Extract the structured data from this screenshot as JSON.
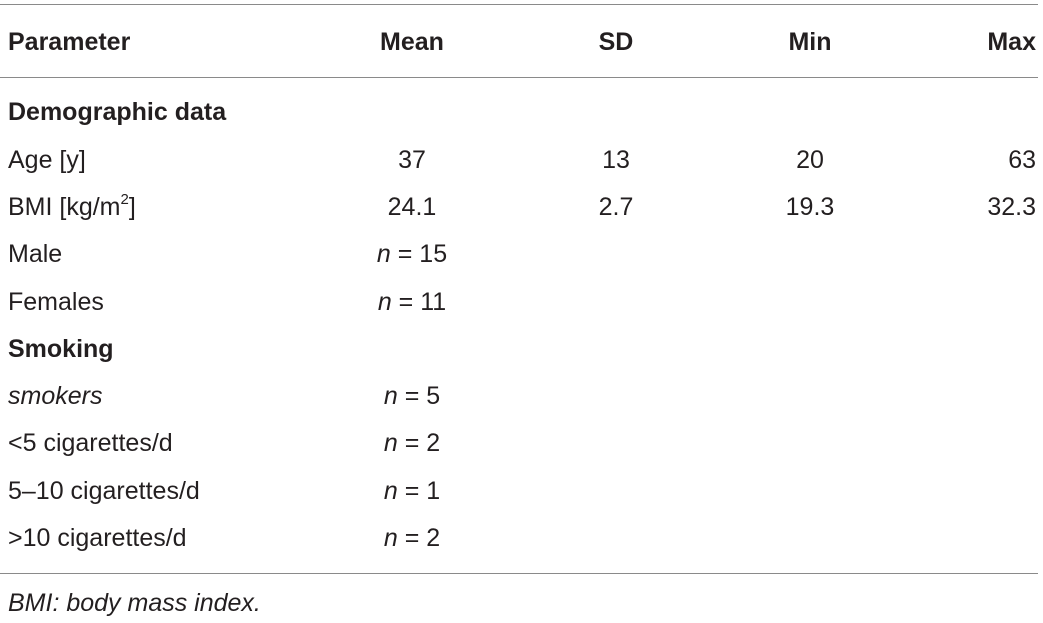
{
  "table": {
    "headers": {
      "parameter": "Parameter",
      "mean": "Mean",
      "sd": "SD",
      "min": "Min",
      "max": "Max"
    },
    "sections": {
      "demographic": "Demographic data",
      "smoking": "Smoking"
    },
    "rows": {
      "age": {
        "parameter": "Age [y]",
        "mean": "37",
        "sd": "13",
        "min": "20",
        "max": "63"
      },
      "bmi": {
        "parameter_prefix": "BMI [kg/m",
        "parameter_sup": "2",
        "parameter_suffix": "]",
        "mean": "24.1",
        "sd": "2.7",
        "min": "19.3",
        "max": "32.3"
      },
      "male": {
        "parameter": "Male",
        "n_symbol": "n",
        "n_rest": " = 15"
      },
      "females": {
        "parameter": "Females",
        "n_symbol": "n",
        "n_rest": " = 11"
      },
      "smokers": {
        "parameter": "smokers",
        "n_symbol": "n",
        "n_rest": " = 5"
      },
      "lt5": {
        "parameter": "<5 cigarettes/d",
        "n_symbol": "n",
        "n_rest": " = 2"
      },
      "five_to_ten": {
        "parameter": "5–10 cigarettes/d",
        "n_symbol": "n",
        "n_rest": " = 1"
      },
      "gt10": {
        "parameter": ">10 cigarettes/d",
        "n_symbol": "n",
        "n_rest": " = 2"
      }
    },
    "footnote": "BMI: body mass index."
  }
}
